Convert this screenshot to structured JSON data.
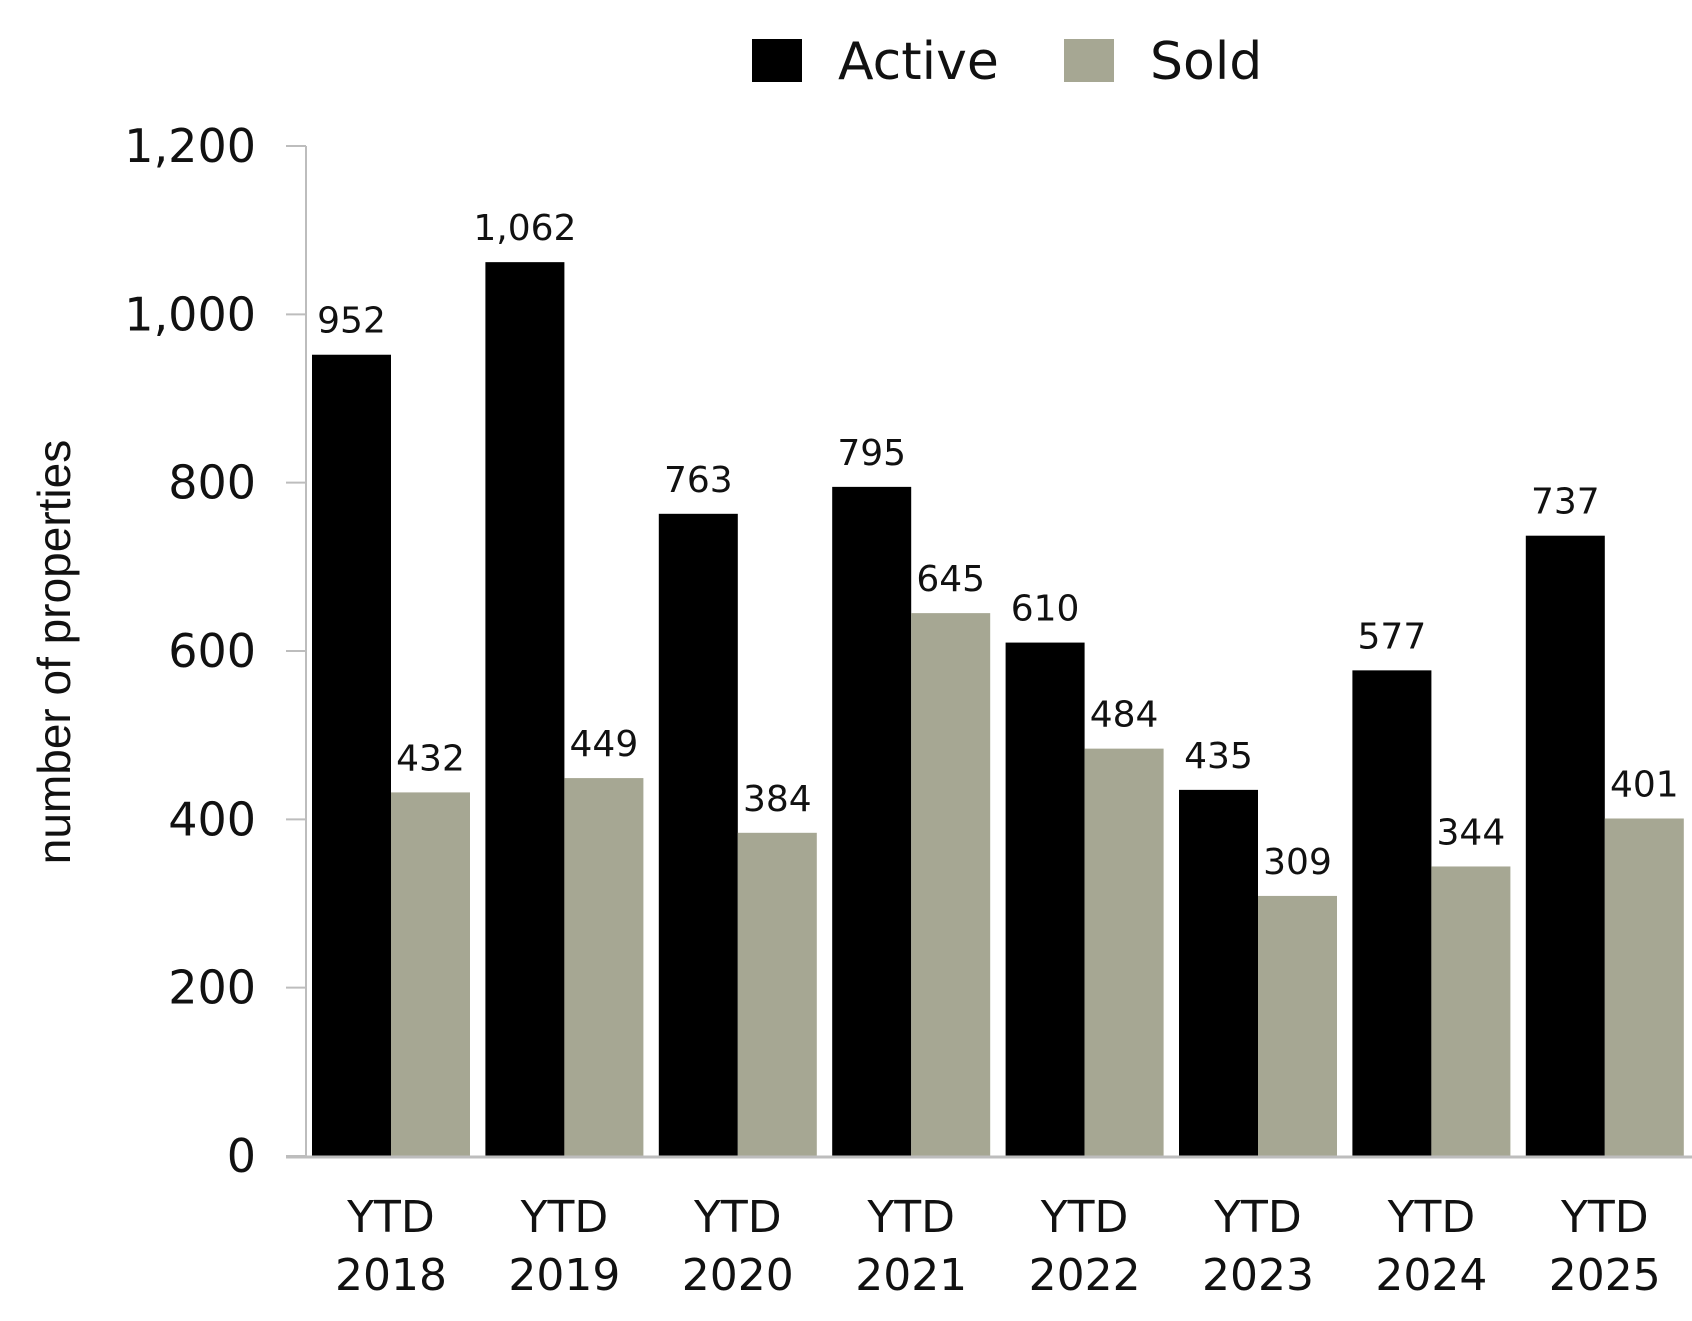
{
  "chart_data": {
    "type": "bar",
    "title": "",
    "xlabel": "",
    "ylabel": "number of properties",
    "ylim": [
      0,
      1200
    ],
    "yticks": [
      0,
      200,
      400,
      600,
      800,
      1000,
      1200
    ],
    "ytick_labels": [
      "0",
      "200",
      "400",
      "600",
      "800",
      "1,000",
      "1,200"
    ],
    "grid": false,
    "legend_position": "top-center",
    "categories": [
      [
        "YTD",
        "2018"
      ],
      [
        "YTD",
        "2019"
      ],
      [
        "YTD",
        "2020"
      ],
      [
        "YTD",
        "2021"
      ],
      [
        "YTD",
        "2022"
      ],
      [
        "YTD",
        "2023"
      ],
      [
        "YTD",
        "2024"
      ],
      [
        "YTD",
        "2025"
      ]
    ],
    "series": [
      {
        "name": "Active",
        "color": "#000000",
        "values": [
          952,
          1062,
          763,
          795,
          610,
          435,
          577,
          737
        ],
        "labels": [
          "952",
          "1,062",
          "763",
          "795",
          "610",
          "435",
          "577",
          "737"
        ]
      },
      {
        "name": "Sold",
        "color": "#a6a793",
        "values": [
          432,
          449,
          384,
          645,
          484,
          309,
          344,
          401
        ],
        "labels": [
          "432",
          "449",
          "384",
          "645",
          "484",
          "309",
          "344",
          "401"
        ]
      }
    ]
  }
}
